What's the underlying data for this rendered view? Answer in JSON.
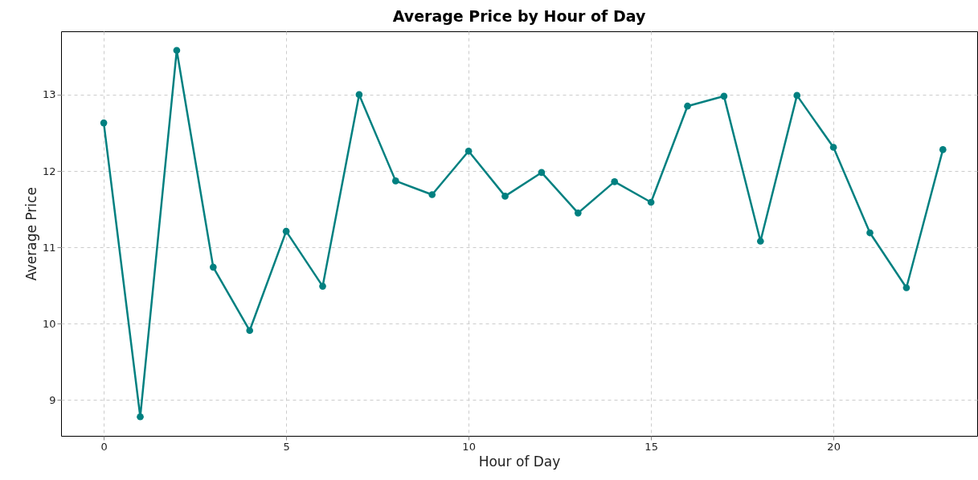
{
  "chart_data": {
    "type": "line",
    "title": "Average Price by Hour of Day",
    "xlabel": "Hour of Day",
    "ylabel": "Average Price",
    "x": [
      0,
      1,
      2,
      3,
      4,
      5,
      6,
      7,
      8,
      9,
      10,
      11,
      12,
      13,
      14,
      15,
      16,
      17,
      18,
      19,
      20,
      21,
      22,
      23
    ],
    "series": [
      {
        "color": "#008080",
        "values": [
          12.63,
          8.78,
          13.58,
          10.74,
          9.91,
          11.21,
          10.49,
          13.0,
          11.87,
          11.69,
          12.26,
          11.67,
          11.98,
          11.45,
          11.86,
          11.59,
          12.85,
          12.98,
          11.08,
          12.99,
          12.31,
          11.19,
          10.47,
          12.28
        ]
      }
    ],
    "xlim": [
      -1.17,
      23.94
    ],
    "ylim": [
      8.53,
      13.83
    ],
    "xticks": [
      0,
      5,
      10,
      15,
      20
    ],
    "yticks": [
      9,
      10,
      11,
      12,
      13
    ],
    "grid": true,
    "marker": "circle",
    "line_style": "solid"
  }
}
